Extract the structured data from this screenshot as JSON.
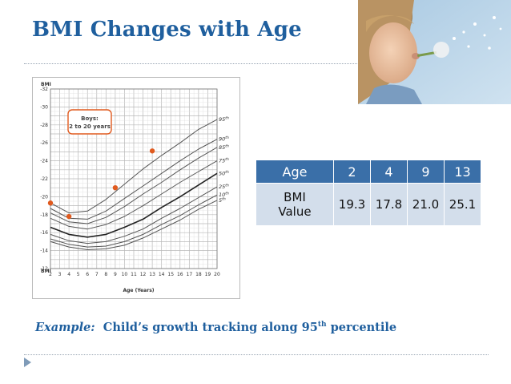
{
  "slide": {
    "title": "BMI Changes with Age",
    "caption": {
      "example_label": "Example:",
      "text_before_sup": "Child’s growth tracking along 95",
      "sup": "th",
      "text_after_sup": " percentile"
    }
  },
  "growth_chart": {
    "y_axis_title": "BMI",
    "y_axis_title_bottom": "BMI",
    "y_ticks": [
      "32",
      "30",
      "28",
      "26",
      "24",
      "22",
      "20",
      "18",
      "16",
      "14",
      "12"
    ],
    "x_ticks": [
      "2",
      "3",
      "4",
      "5",
      "6",
      "7",
      "8",
      "9",
      "10",
      "11",
      "12",
      "13",
      "14",
      "15",
      "16",
      "17",
      "18",
      "19",
      "20"
    ],
    "x_axis_title": "Age (Years)",
    "legend_line1": "Boys:",
    "legend_line2": "2 to 20 years",
    "percentile_labels": [
      {
        "num": "95",
        "suf": "th"
      },
      {
        "num": "90",
        "suf": "th"
      },
      {
        "num": "85",
        "suf": "th"
      },
      {
        "num": "75",
        "suf": "th"
      },
      {
        "num": "50",
        "suf": "th"
      },
      {
        "num": "25",
        "suf": "th"
      },
      {
        "num": "10",
        "suf": "th"
      },
      {
        "num": "5",
        "suf": "th"
      }
    ],
    "accent_color": "#e05a1e"
  },
  "chart_data": {
    "type": "line",
    "title": "",
    "xlabel": "Age (Years)",
    "ylabel": "BMI",
    "xlim": [
      2,
      20
    ],
    "ylim": [
      12,
      32
    ],
    "grid": true,
    "series": [
      {
        "name": "95th",
        "x": [
          2,
          4,
          6,
          8,
          10,
          12,
          14,
          16,
          18,
          20
        ],
        "y": [
          19.3,
          18.2,
          18.4,
          19.7,
          21.4,
          23.1,
          24.6,
          26.0,
          27.5,
          28.6
        ]
      },
      {
        "name": "90th",
        "x": [
          2,
          4,
          6,
          8,
          10,
          12,
          14,
          16,
          18,
          20
        ],
        "y": [
          18.7,
          17.6,
          17.5,
          18.4,
          19.8,
          21.2,
          22.6,
          24.0,
          25.3,
          26.4
        ]
      },
      {
        "name": "85th",
        "x": [
          2,
          4,
          6,
          8,
          10,
          12,
          14,
          16,
          18,
          20
        ],
        "y": [
          18.2,
          17.2,
          17.0,
          17.7,
          18.9,
          20.3,
          21.6,
          23.0,
          24.3,
          25.5
        ]
      },
      {
        "name": "75th",
        "x": [
          2,
          4,
          6,
          8,
          10,
          12,
          14,
          16,
          18,
          20
        ],
        "y": [
          17.6,
          16.7,
          16.4,
          16.9,
          17.8,
          19.0,
          20.3,
          21.6,
          22.8,
          24.0
        ]
      },
      {
        "name": "50th",
        "x": [
          2,
          4,
          6,
          8,
          10,
          12,
          14,
          16,
          18,
          20
        ],
        "y": [
          16.6,
          15.8,
          15.5,
          15.8,
          16.6,
          17.5,
          18.8,
          20.0,
          21.3,
          22.6
        ]
      },
      {
        "name": "25th",
        "x": [
          2,
          4,
          6,
          8,
          10,
          12,
          14,
          16,
          18,
          20
        ],
        "y": [
          15.8,
          15.1,
          14.8,
          15.0,
          15.6,
          16.4,
          17.6,
          18.7,
          19.9,
          21.1
        ]
      },
      {
        "name": "10th",
        "x": [
          2,
          4,
          6,
          8,
          10,
          12,
          14,
          16,
          18,
          20
        ],
        "y": [
          15.3,
          14.7,
          14.4,
          14.5,
          15.0,
          15.8,
          16.9,
          17.9,
          19.1,
          20.2
        ]
      },
      {
        "name": "5th",
        "x": [
          2,
          4,
          6,
          8,
          10,
          12,
          14,
          16,
          18,
          20
        ],
        "y": [
          15.0,
          14.4,
          14.1,
          14.2,
          14.6,
          15.4,
          16.4,
          17.4,
          18.6,
          19.6
        ]
      }
    ],
    "points": {
      "name": "Child",
      "x": [
        2,
        4,
        9,
        13
      ],
      "y": [
        19.3,
        17.8,
        21.0,
        25.1
      ]
    }
  },
  "table": {
    "row1": [
      "Age",
      "2",
      "4",
      "9",
      "13"
    ],
    "row2_label_line1": "BMI",
    "row2_label_line2": "Value",
    "row2": [
      "19.3",
      "17.8",
      "21.0",
      "25.1"
    ]
  }
}
